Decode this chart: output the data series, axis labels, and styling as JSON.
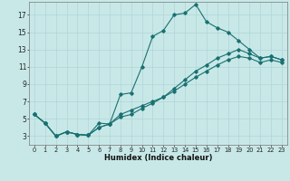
{
  "xlabel": "Humidex (Indice chaleur)",
  "background_color": "#c8e8e8",
  "grid_color": "#b0d4d4",
  "line_color": "#1a7070",
  "xlim": [
    -0.5,
    23.5
  ],
  "ylim": [
    2,
    18.5
  ],
  "xticks": [
    0,
    1,
    2,
    3,
    4,
    5,
    6,
    7,
    8,
    9,
    10,
    11,
    12,
    13,
    14,
    15,
    16,
    17,
    18,
    19,
    20,
    21,
    22,
    23
  ],
  "yticks": [
    3,
    5,
    7,
    9,
    11,
    13,
    15,
    17
  ],
  "series": [
    {
      "x": [
        0,
        1,
        2,
        3,
        4,
        5,
        6,
        7,
        8,
        9,
        10,
        11,
        12,
        13,
        14,
        15,
        16,
        17,
        18,
        19,
        20,
        21,
        22,
        23
      ],
      "y": [
        5.5,
        4.5,
        3.0,
        3.5,
        3.2,
        3.1,
        4.5,
        4.4,
        7.8,
        8.0,
        11.0,
        14.5,
        15.2,
        17.0,
        17.2,
        18.2,
        16.2,
        15.5,
        15.0,
        14.0,
        13.0,
        12.0,
        12.2,
        11.8
      ]
    },
    {
      "x": [
        0,
        1,
        2,
        3,
        4,
        5,
        6,
        7,
        8,
        9,
        10,
        11,
        12,
        13,
        14,
        15,
        16,
        17,
        18,
        19,
        20,
        21,
        22,
        23
      ],
      "y": [
        5.5,
        4.5,
        3.0,
        3.5,
        3.2,
        3.1,
        4.0,
        4.4,
        5.5,
        6.0,
        6.5,
        7.0,
        7.5,
        8.2,
        9.0,
        9.8,
        10.5,
        11.2,
        11.8,
        12.2,
        12.0,
        11.5,
        11.8,
        11.5
      ]
    },
    {
      "x": [
        0,
        1,
        2,
        3,
        4,
        5,
        6,
        7,
        8,
        9,
        10,
        11,
        12,
        13,
        14,
        15,
        16,
        17,
        18,
        19,
        20,
        21,
        22,
        23
      ],
      "y": [
        5.5,
        4.5,
        3.0,
        3.5,
        3.2,
        3.1,
        4.0,
        4.4,
        5.2,
        5.5,
        6.2,
        6.8,
        7.5,
        8.5,
        9.5,
        10.5,
        11.2,
        12.0,
        12.5,
        13.0,
        12.5,
        12.0,
        12.2,
        11.8
      ]
    }
  ],
  "xlabel_fontsize": 6,
  "xtick_fontsize": 4.8,
  "ytick_fontsize": 5.5
}
